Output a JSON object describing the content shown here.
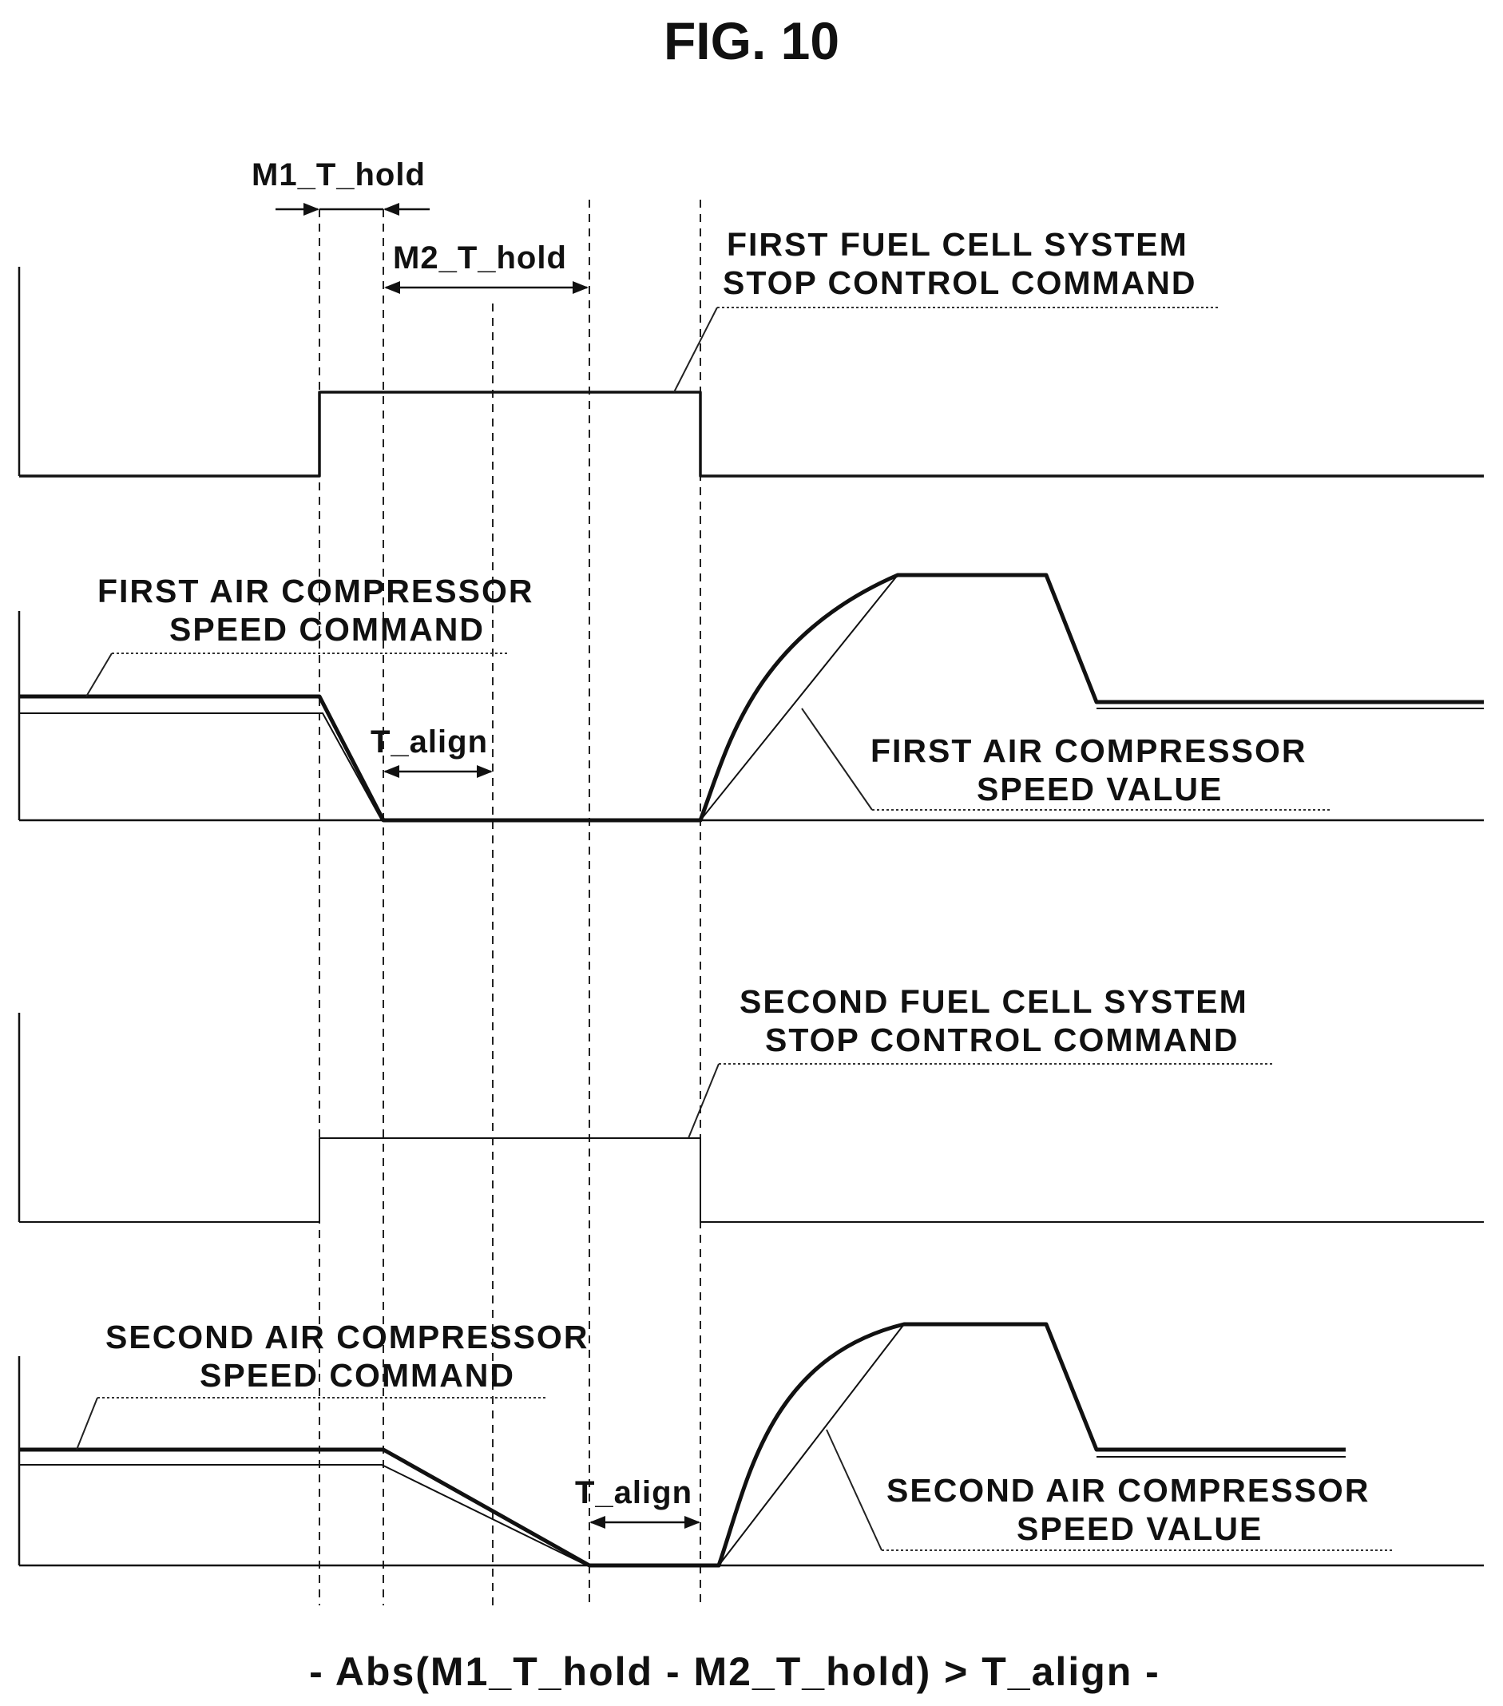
{
  "figure": {
    "title": "FIG. 10",
    "caption": "- Abs(M1_T_hold - M2_T_hold) > T_align -"
  },
  "dimensions": {
    "m1_t_hold": "M1_T_hold",
    "m2_t_hold": "M2_T_hold",
    "t_align_first": "T_align",
    "t_align_second": "T_align"
  },
  "labels": {
    "first_stop_command": [
      "FIRST FUEL CELL SYSTEM",
      "STOP CONTROL COMMAND"
    ],
    "first_speed_command": [
      "FIRST AIR COMPRESSOR",
      "SPEED COMMAND"
    ],
    "first_speed_value": [
      "FIRST AIR COMPRESSOR",
      "SPEED VALUE"
    ],
    "second_stop_command": [
      "SECOND FUEL CELL SYSTEM",
      "STOP CONTROL COMMAND"
    ],
    "second_speed_command": [
      "SECOND AIR COMPRESSOR",
      "SPEED COMMAND"
    ],
    "second_speed_value": [
      "SECOND AIR COMPRESSOR",
      "SPEED VALUE"
    ]
  },
  "colors": {
    "ink": "#111111",
    "background": "#ffffff"
  }
}
